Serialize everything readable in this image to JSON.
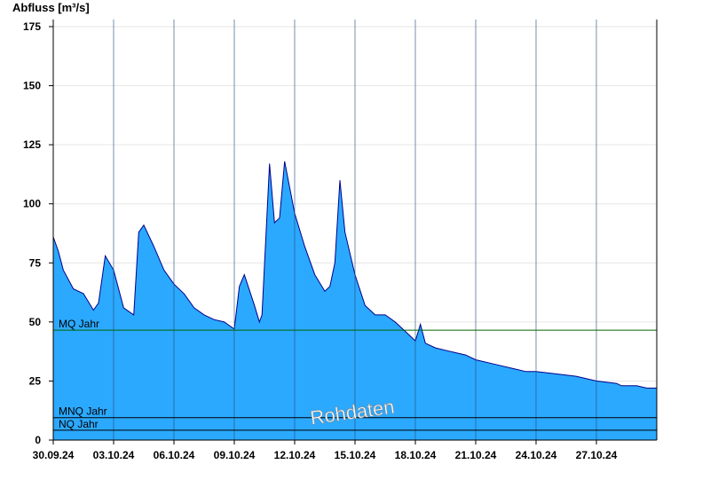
{
  "chart_data": {
    "type": "area",
    "ylabel": "Abfluss [m³/s]",
    "ylim": [
      0,
      178
    ],
    "yticks": [
      0,
      25,
      50,
      75,
      100,
      125,
      150,
      175
    ],
    "xlim": [
      "2024-09-30T00:00",
      "2024-10-30T00:00"
    ],
    "xticks": [
      {
        "date": "2024-09-30",
        "label": "30.09.24"
      },
      {
        "date": "2024-10-03",
        "label": "03.10.24"
      },
      {
        "date": "2024-10-06",
        "label": "06.10.24"
      },
      {
        "date": "2024-10-09",
        "label": "09.10.24"
      },
      {
        "date": "2024-10-12",
        "label": "12.10.24"
      },
      {
        "date": "2024-10-15",
        "label": "15.10.24"
      },
      {
        "date": "2024-10-18",
        "label": "18.10.24"
      },
      {
        "date": "2024-10-21",
        "label": "21.10.24"
      },
      {
        "date": "2024-10-24",
        "label": "24.10.24"
      },
      {
        "date": "2024-10-27",
        "label": "27.10.24"
      }
    ],
    "grid": "horizontal",
    "series": [
      {
        "color": "#2ba9ff",
        "line_color": "#00008b",
        "x": [
          "2024-09-30T00:00",
          "2024-09-30T06:00",
          "2024-09-30T12:00",
          "2024-10-01T00:00",
          "2024-10-01T12:00",
          "2024-10-02T00:00",
          "2024-10-02T06:00",
          "2024-10-02T14:00",
          "2024-10-03T00:00",
          "2024-10-03T12:00",
          "2024-10-04T00:00",
          "2024-10-04T06:00",
          "2024-10-04T12:00",
          "2024-10-05T00:00",
          "2024-10-05T12:00",
          "2024-10-06T00:00",
          "2024-10-06T12:00",
          "2024-10-07T00:00",
          "2024-10-07T12:00",
          "2024-10-08T00:00",
          "2024-10-08T12:00",
          "2024-10-08T20:00",
          "2024-10-09T00:00",
          "2024-10-09T06:00",
          "2024-10-09T12:00",
          "2024-10-10T00:00",
          "2024-10-10T06:00",
          "2024-10-10T09:00",
          "2024-10-10T18:00",
          "2024-10-11T00:00",
          "2024-10-11T06:00",
          "2024-10-11T12:00",
          "2024-10-12T00:00",
          "2024-10-12T12:00",
          "2024-10-13T00:00",
          "2024-10-13T12:00",
          "2024-10-13T18:00",
          "2024-10-14T00:00",
          "2024-10-14T06:00",
          "2024-10-14T12:00",
          "2024-10-15T00:00",
          "2024-10-15T12:00",
          "2024-10-16T00:00",
          "2024-10-16T12:00",
          "2024-10-17T00:00",
          "2024-10-17T12:00",
          "2024-10-18T00:00",
          "2024-10-18T06:00",
          "2024-10-18T12:00",
          "2024-10-19T00:00",
          "2024-10-19T12:00",
          "2024-10-20T00:00",
          "2024-10-20T12:00",
          "2024-10-21T00:00",
          "2024-10-22T00:00",
          "2024-10-23T00:00",
          "2024-10-23T12:00",
          "2024-10-24T00:00",
          "2024-10-25T00:00",
          "2024-10-26T00:00",
          "2024-10-27T00:00",
          "2024-10-28T00:00",
          "2024-10-28T06:00",
          "2024-10-28T12:00",
          "2024-10-29T00:00",
          "2024-10-29T12:00",
          "2024-10-30T00:00"
        ],
        "y": [
          86,
          80,
          72,
          64,
          62,
          55,
          58,
          78,
          72,
          56,
          53,
          88,
          91,
          82,
          72,
          66,
          62,
          56,
          53,
          51,
          50,
          48,
          47,
          65,
          70,
          57,
          50,
          53,
          117,
          92,
          94,
          118,
          96,
          82,
          70,
          63,
          65,
          75,
          110,
          88,
          70,
          57,
          53,
          53,
          50,
          46,
          42,
          49,
          41,
          39,
          38,
          37,
          36,
          34,
          32,
          30,
          29,
          29,
          28,
          27,
          25,
          24,
          23,
          23,
          23,
          22,
          22
        ]
      }
    ],
    "reference_lines": [
      {
        "label": "MQ Jahr",
        "value": 46.5,
        "color": "#006400"
      },
      {
        "label": "MNQ Jahr",
        "value": 9.5,
        "color": "#000000"
      },
      {
        "label": "NQ Jahr",
        "value": 4.2,
        "color": "#000000"
      }
    ],
    "annotations": [
      {
        "text": "Rohdaten"
      }
    ]
  }
}
